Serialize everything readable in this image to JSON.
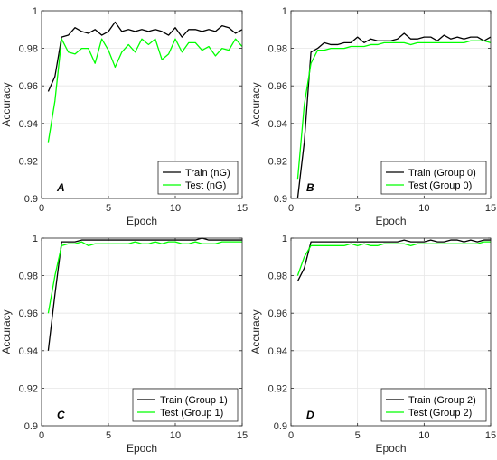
{
  "figure": {
    "colors": {
      "train": "#000000",
      "test": "#00ff00",
      "axis": "#262626",
      "grid": "#e6e6e6"
    },
    "ylabel": "Accuracy",
    "xlabel": "Epoch"
  },
  "chart_data": [
    {
      "type": "line",
      "panel_label": "A",
      "xlabel": "Epoch",
      "ylabel": "Accuracy",
      "xlim": [
        0,
        15
      ],
      "ylim": [
        0.9,
        1.0
      ],
      "xticks": [
        "0",
        "5",
        "10",
        "15"
      ],
      "yticks": [
        "0.9",
        "0.92",
        "0.94",
        "0.96",
        "0.98",
        "1"
      ],
      "legend_position": "bottom-right",
      "x": [
        0.5,
        1,
        1.5,
        2,
        2.5,
        3,
        3.5,
        4,
        4.5,
        5,
        5.5,
        6,
        6.5,
        7,
        7.5,
        8,
        8.5,
        9,
        9.5,
        10,
        10.5,
        11,
        11.5,
        12,
        12.5,
        13,
        13.5,
        14,
        14.5,
        15
      ],
      "series": [
        {
          "name": "Train (nG)",
          "values": [
            0.957,
            0.965,
            0.986,
            0.987,
            0.991,
            0.989,
            0.988,
            0.99,
            0.987,
            0.989,
            0.994,
            0.989,
            0.99,
            0.989,
            0.99,
            0.989,
            0.99,
            0.989,
            0.987,
            0.991,
            0.986,
            0.99,
            0.99,
            0.989,
            0.99,
            0.989,
            0.992,
            0.991,
            0.988,
            0.99
          ]
        },
        {
          "name": "Test (nG)",
          "values": [
            0.93,
            0.952,
            0.985,
            0.978,
            0.977,
            0.98,
            0.98,
            0.972,
            0.985,
            0.979,
            0.97,
            0.978,
            0.982,
            0.978,
            0.985,
            0.982,
            0.985,
            0.974,
            0.977,
            0.985,
            0.978,
            0.983,
            0.983,
            0.979,
            0.981,
            0.976,
            0.98,
            0.979,
            0.985,
            0.981
          ]
        }
      ]
    },
    {
      "type": "line",
      "panel_label": "B",
      "xlabel": "Epoch",
      "ylabel": "Accuracy",
      "xlim": [
        0,
        15
      ],
      "ylim": [
        0.9,
        1.0
      ],
      "xticks": [
        "0",
        "5",
        "10",
        "15"
      ],
      "yticks": [
        "0.9",
        "0.92",
        "0.94",
        "0.96",
        "0.98",
        "1"
      ],
      "legend_position": "bottom-right",
      "x": [
        0.5,
        1,
        1.5,
        2,
        2.5,
        3,
        3.5,
        4,
        4.5,
        5,
        5.5,
        6,
        6.5,
        7,
        7.5,
        8,
        8.5,
        9,
        9.5,
        10,
        10.5,
        11,
        11.5,
        12,
        12.5,
        13,
        13.5,
        14,
        14.5,
        15
      ],
      "series": [
        {
          "name": "Train (Group 0)",
          "values": [
            0.9,
            0.93,
            0.978,
            0.98,
            0.983,
            0.982,
            0.982,
            0.983,
            0.983,
            0.986,
            0.983,
            0.985,
            0.984,
            0.984,
            0.984,
            0.985,
            0.988,
            0.985,
            0.985,
            0.986,
            0.986,
            0.984,
            0.987,
            0.985,
            0.986,
            0.985,
            0.986,
            0.986,
            0.984,
            0.986
          ]
        },
        {
          "name": "Test (Group 0)",
          "values": [
            0.91,
            0.95,
            0.972,
            0.979,
            0.979,
            0.98,
            0.98,
            0.98,
            0.981,
            0.981,
            0.981,
            0.982,
            0.982,
            0.983,
            0.983,
            0.983,
            0.983,
            0.982,
            0.983,
            0.983,
            0.983,
            0.983,
            0.983,
            0.983,
            0.983,
            0.983,
            0.984,
            0.984,
            0.984,
            0.983
          ]
        }
      ]
    },
    {
      "type": "line",
      "panel_label": "C",
      "xlabel": "Epoch",
      "ylabel": "Accuracy",
      "xlim": [
        0,
        15
      ],
      "ylim": [
        0.9,
        1.0
      ],
      "xticks": [
        "0",
        "5",
        "10",
        "15"
      ],
      "yticks": [
        "0.9",
        "0.92",
        "0.94",
        "0.96",
        "0.98",
        "1"
      ],
      "legend_position": "bottom-right",
      "x": [
        0.5,
        1,
        1.5,
        2,
        2.5,
        3,
        3.5,
        4,
        4.5,
        5,
        5.5,
        6,
        6.5,
        7,
        7.5,
        8,
        8.5,
        9,
        9.5,
        10,
        10.5,
        11,
        11.5,
        12,
        12.5,
        13,
        13.5,
        14,
        14.5,
        15
      ],
      "series": [
        {
          "name": "Train (Group 1)",
          "values": [
            0.94,
            0.97,
            0.998,
            0.998,
            0.998,
            0.999,
            0.999,
            0.999,
            0.999,
            0.999,
            0.999,
            0.999,
            0.999,
            0.999,
            0.999,
            0.999,
            0.999,
            0.999,
            0.999,
            0.999,
            0.999,
            0.999,
            0.999,
            1.0,
            0.999,
            0.999,
            0.999,
            0.999,
            0.999,
            0.999
          ]
        },
        {
          "name": "Test (Group 1)",
          "values": [
            0.96,
            0.98,
            0.996,
            0.997,
            0.997,
            0.998,
            0.996,
            0.997,
            0.997,
            0.997,
            0.997,
            0.997,
            0.997,
            0.998,
            0.997,
            0.997,
            0.998,
            0.997,
            0.998,
            0.998,
            0.997,
            0.997,
            0.998,
            0.997,
            0.997,
            0.997,
            0.998,
            0.998,
            0.998,
            0.998
          ]
        }
      ]
    },
    {
      "type": "line",
      "panel_label": "D",
      "xlabel": "Epoch",
      "ylabel": "Accuracy",
      "xlim": [
        0,
        15
      ],
      "ylim": [
        0.9,
        1.0
      ],
      "xticks": [
        "0",
        "5",
        "10",
        "15"
      ],
      "yticks": [
        "0.9",
        "0.92",
        "0.94",
        "0.96",
        "0.98",
        "1"
      ],
      "legend_position": "bottom-right",
      "x": [
        0.5,
        1,
        1.5,
        2,
        2.5,
        3,
        3.5,
        4,
        4.5,
        5,
        5.5,
        6,
        6.5,
        7,
        7.5,
        8,
        8.5,
        9,
        9.5,
        10,
        10.5,
        11,
        11.5,
        12,
        12.5,
        13,
        13.5,
        14,
        14.5,
        15
      ],
      "series": [
        {
          "name": "Train (Group 2)",
          "values": [
            0.977,
            0.984,
            0.998,
            0.998,
            0.998,
            0.998,
            0.998,
            0.998,
            0.998,
            0.998,
            0.998,
            0.998,
            0.998,
            0.998,
            0.998,
            0.998,
            0.999,
            0.998,
            0.998,
            0.998,
            0.999,
            0.998,
            0.998,
            0.999,
            0.999,
            0.998,
            0.999,
            0.998,
            0.999,
            0.999
          ]
        },
        {
          "name": "Test (Group 2)",
          "values": [
            0.98,
            0.99,
            0.996,
            0.996,
            0.996,
            0.996,
            0.996,
            0.996,
            0.997,
            0.996,
            0.997,
            0.996,
            0.996,
            0.997,
            0.997,
            0.997,
            0.997,
            0.996,
            0.997,
            0.997,
            0.997,
            0.997,
            0.997,
            0.997,
            0.997,
            0.997,
            0.997,
            0.997,
            0.998,
            0.998
          ]
        }
      ]
    }
  ]
}
